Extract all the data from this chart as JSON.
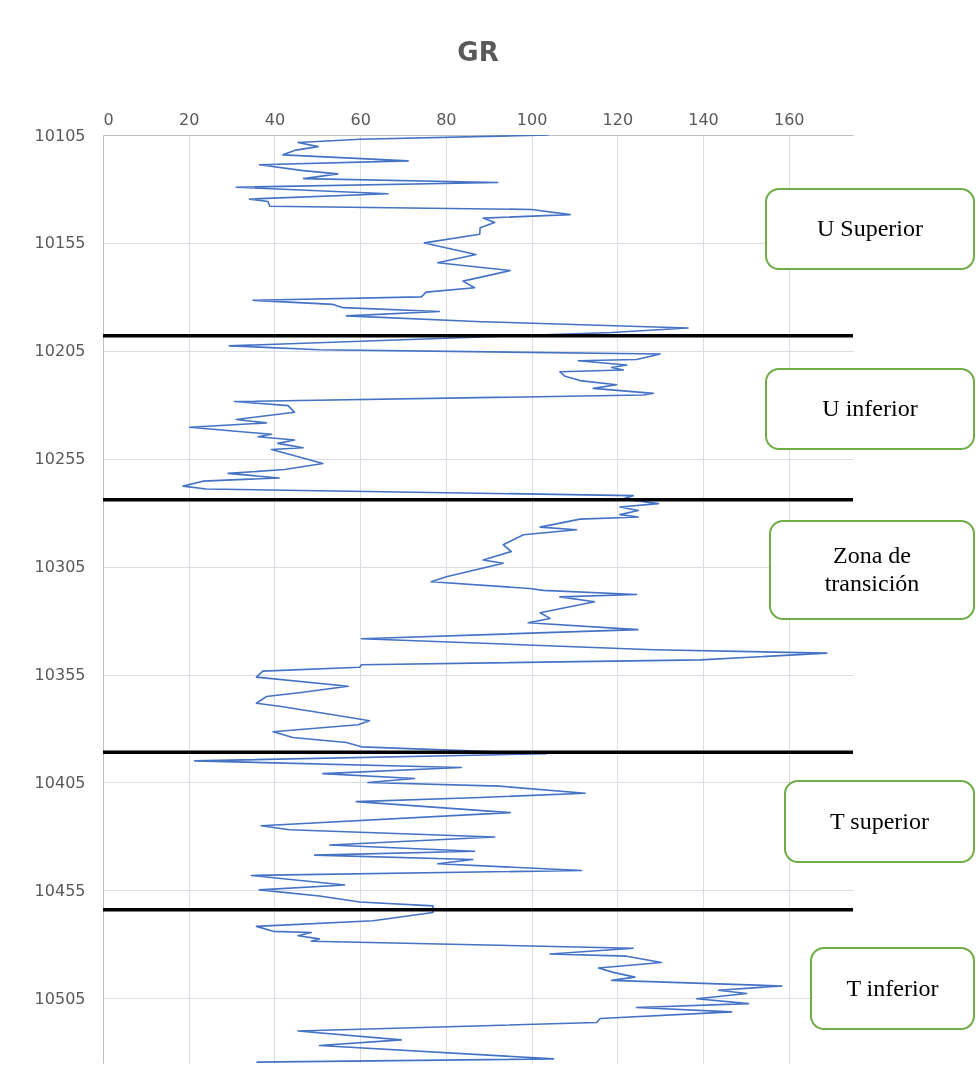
{
  "chart_data": {
    "type": "line",
    "title": "GR",
    "orientation": "horizontal",
    "grid": true,
    "xlim": [
      0,
      175
    ],
    "xticks": [
      0,
      20,
      40,
      60,
      80,
      100,
      120,
      140,
      160
    ],
    "ylim": [
      10535,
      10105
    ],
    "yticks": [
      10105,
      10155,
      10205,
      10255,
      10305,
      10355,
      10405,
      10455,
      10505
    ],
    "series": [
      {
        "color": "#4472c4",
        "x": [
          10105,
          10107,
          10108.5,
          10110.4,
          10112,
          10114.2,
          10117,
          10118.8,
          10121.5,
          10123,
          10125.2,
          10127,
          10129.2,
          10132.2,
          10134.7,
          10135.8,
          10138,
          10139.5,
          10141.9,
          10143.5,
          10145.5,
          10148,
          10151,
          10155,
          10160.4,
          10164.2,
          10167.8,
          10172.7,
          10175.8,
          10177.8,
          10180,
          10181.6,
          10183.5,
          10185,
          10186.8,
          10188.8,
          10191.5,
          10194.4,
          10196.5,
          10202.7,
          10204.5,
          10206.5,
          10209,
          10209.6,
          10211.6,
          10212.7,
          10213.9,
          10214.7,
          10216.8,
          10218.8,
          10220.7,
          10222.4,
          10224.7,
          10225.5,
          10228.5,
          10230.4,
          10233.5,
          10236.8,
          10238.4,
          10240.4,
          10243.7,
          10244.8,
          10246.3,
          10247.9,
          10249.9,
          10250.7,
          10253.4,
          10257.2,
          10260,
          10261.8,
          10263.9,
          10265.4,
          10267.7,
          10269,
          10272.1,
          10273.6,
          10275.8,
          10277.4,
          10279,
          10280.9,
          10282,
          10283,
          10286.7,
          10287.9,
          10290.2,
          10294.9,
          10298,
          10301.9,
          10303.4,
          10309.7,
          10312,
          10315.1,
          10316,
          10317.9,
          10319,
          10321.3,
          10326.4,
          10329,
          10331,
          10334.2,
          10338.4,
          10343.5,
          10345.1,
          10348.2,
          10350.5,
          10351.6,
          10353.4,
          10356.2,
          10360.4,
          10363.2,
          10365.2,
          10368.3,
          10369.7,
          10373.6,
          10376.4,
          10378.3,
          10381.5,
          10384.2,
          10386.5,
          10388.5,
          10391.7,
          10395,
          10398.1,
          10400.9,
          10403.2,
          10405,
          10406.7,
          10410,
          10412,
          10413.9,
          10419,
          10425.1,
          10426.9,
          10430.3,
          10434,
          10436.9,
          10438.7,
          10440.7,
          10442.7,
          10445.8,
          10448.1,
          10452.5,
          10454.8,
          10457.6,
          10460.4,
          10462.2,
          10465.3,
          10469.1,
          10471.7,
          10474,
          10474.5,
          10476,
          10477.5,
          10478.6,
          10481.8,
          10484.5,
          10485.5,
          10488.4,
          10491,
          10493,
          10495.2,
          10496.7,
          10499.3,
          10501.3,
          10502.8,
          10505.2,
          10507.5,
          10509.3,
          10511.3,
          10514.4,
          10516.2,
          10520.2,
          10524.3,
          10526.9,
          10533.1,
          10534.6
        ],
        "values": [
          104,
          60,
          45.5,
          50.2,
          45,
          42,
          71.2,
          36.5,
          46.7,
          54.8,
          46.8,
          92.1,
          31.1,
          66.5,
          34.2,
          38.5,
          38.9,
          100,
          109,
          88.7,
          91.4,
          88,
          87.9,
          75,
          87,
          78.1,
          95,
          84,
          86.7,
          75.4,
          74.3,
          35,
          53.7,
          56,
          78.5,
          56.8,
          88.4,
          136.5,
          118.7,
          29.5,
          50.5,
          130,
          124.5,
          110.9,
          122.2,
          118.7,
          121.4,
          106.6,
          107.8,
          111.3,
          119.8,
          114.4,
          128.4,
          126.1,
          30.7,
          43.2,
          44.7,
          31.1,
          38.1,
          20.2,
          39.3,
          36.2,
          44.7,
          40.8,
          46.7,
          39.3,
          44.3,
          51.3,
          42.4,
          29.2,
          41.1,
          23.3,
          18.7,
          24.1,
          123.7,
          121.4,
          129.6,
          120.6,
          124.9,
          120.6,
          124.9,
          111.3,
          102,
          110.5,
          98.1,
          93.4,
          95.3,
          88.7,
          93.4,
          80.1,
          76.6,
          99.6,
          102.7,
          124.5,
          106.6,
          114.7,
          102,
          104.3,
          99.2,
          124.8,
          60.3,
          128.4,
          168.9,
          139.3,
          60.3,
          59.9,
          37.3,
          35.8,
          57.2,
          46.7,
          38.1,
          35.8,
          41.2,
          53.7,
          62.2,
          59.5,
          39.7,
          44.3,
          56.8,
          60.3,
          103.5,
          21.4,
          83.6,
          51.3,
          72.7,
          61.8,
          92.5,
          112.5,
          88,
          59.1,
          95,
          36.9,
          43.5,
          91.4,
          52.9,
          86.7,
          49.4,
          86.3,
          78.1,
          111.7,
          34.6,
          56.4,
          36.5,
          50.5,
          59.9,
          77,
          77,
          63,
          35.8,
          39.7,
          48.6,
          45.5,
          50.5,
          48.6,
          123.7,
          104.3,
          122.2,
          130.3,
          115.6,
          119.1,
          124.1,
          118.7,
          158.4,
          143.6,
          150.2,
          138.5,
          150.6,
          124.5,
          146.7,
          116,
          115.2,
          45.5,
          69.6,
          50.5,
          105.1,
          35.8
        ]
      }
    ],
    "ref_lines": [
      {
        "axis": "y",
        "value": 10198,
        "color": "#000000"
      },
      {
        "axis": "y",
        "value": 10274,
        "color": "#000000"
      },
      {
        "axis": "y",
        "value": 10391,
        "color": "#000000"
      },
      {
        "axis": "y",
        "value": 10464,
        "color": "#000000"
      }
    ],
    "annotations": [
      "U Superior",
      "U inferior",
      "Zona de transición",
      "T superior",
      "T inferior"
    ]
  }
}
